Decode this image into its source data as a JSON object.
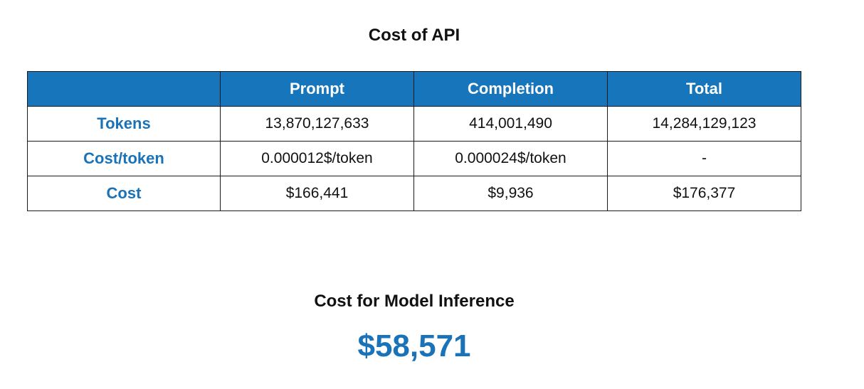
{
  "api_section": {
    "title": "Cost of API",
    "columns": [
      "",
      "Prompt",
      "Completion",
      "Total"
    ],
    "rows": [
      {
        "label": "Tokens",
        "values": [
          "13,870,127,633",
          "414,001,490",
          "14,284,129,123"
        ]
      },
      {
        "label": "Cost/token",
        "values": [
          "0.000012$/token",
          "0.000024$/token",
          "-"
        ]
      },
      {
        "label": "Cost",
        "values": [
          "$166,441",
          "$9,936",
          "$176,377"
        ]
      }
    ]
  },
  "inference_section": {
    "title": "Cost for Model Inference",
    "value": "$58,571"
  },
  "colors": {
    "header_bg": "#1775bb",
    "accent_text": "#1a73b8"
  }
}
